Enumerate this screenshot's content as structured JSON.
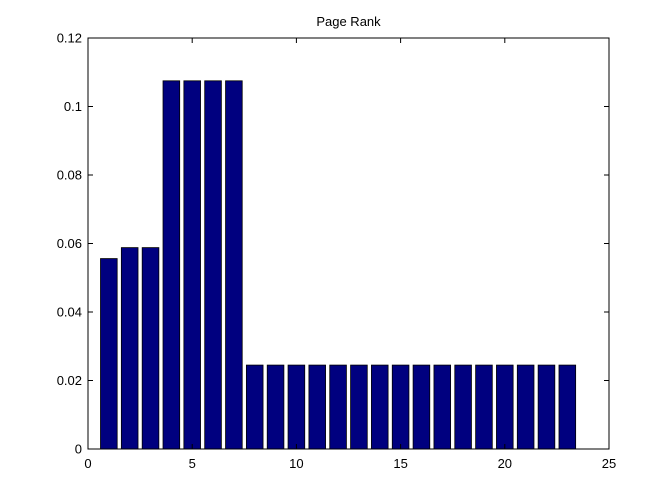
{
  "chart_data": {
    "type": "bar",
    "title": "Page Rank",
    "xlabel": "",
    "ylabel": "",
    "x": [
      1,
      2,
      3,
      4,
      5,
      6,
      7,
      8,
      9,
      10,
      11,
      12,
      13,
      14,
      15,
      16,
      17,
      18,
      19,
      20,
      21,
      22,
      23
    ],
    "values": [
      0.0556,
      0.0588,
      0.0588,
      0.1075,
      0.1075,
      0.1075,
      0.1075,
      0.0245,
      0.0245,
      0.0245,
      0.0245,
      0.0245,
      0.0245,
      0.0245,
      0.0245,
      0.0245,
      0.0245,
      0.0245,
      0.0245,
      0.0245,
      0.0245,
      0.0245,
      0.0245
    ],
    "xlim": [
      0,
      25
    ],
    "ylim": [
      0,
      0.12
    ],
    "xticks": [
      0,
      5,
      10,
      15,
      20,
      25
    ],
    "xtick_labels": [
      "0",
      "5",
      "10",
      "15",
      "20",
      "25"
    ],
    "yticks": [
      0,
      0.02,
      0.04,
      0.06,
      0.08,
      0.1,
      0.12
    ],
    "ytick_labels": [
      "0",
      "0.02",
      "0.04",
      "0.06",
      "0.08",
      "0.1",
      "0.12"
    ],
    "bar_color": "#00007f",
    "grid": false,
    "legend": "none"
  }
}
